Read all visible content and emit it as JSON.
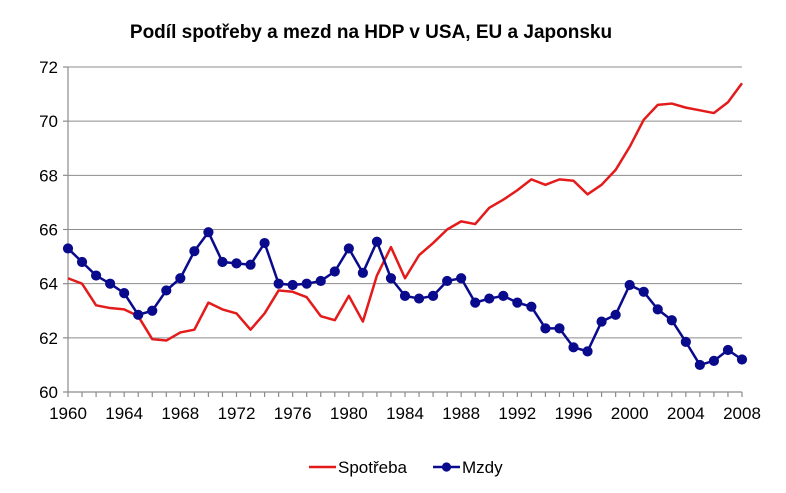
{
  "chart_data": {
    "type": "line",
    "title": "Podíl spotřeby a mezd na HDP v USA, EU a Japonsku",
    "xlabel": "",
    "ylabel": "",
    "ylim": [
      60,
      72
    ],
    "yticks": [
      "60",
      "62",
      "64",
      "66",
      "68",
      "70",
      "72"
    ],
    "xtick_labels": [
      "1960",
      "1964",
      "1968",
      "1972",
      "1976",
      "1980",
      "1984",
      "1988",
      "1992",
      "1996",
      "2000",
      "2004",
      "2008"
    ],
    "grid": true,
    "legend_position": "bottom",
    "x": [
      1960,
      1961,
      1962,
      1963,
      1964,
      1965,
      1966,
      1967,
      1968,
      1969,
      1970,
      1971,
      1972,
      1973,
      1974,
      1975,
      1976,
      1977,
      1978,
      1979,
      1980,
      1981,
      1982,
      1983,
      1984,
      1985,
      1986,
      1987,
      1988,
      1989,
      1990,
      1991,
      1992,
      1993,
      1994,
      1995,
      1996,
      1997,
      1998,
      1999,
      2000,
      2001,
      2002,
      2003,
      2004,
      2005,
      2006,
      2007,
      2008
    ],
    "series": [
      {
        "name": "Spotřeba",
        "color": "#e31b1b",
        "marker": "none",
        "values": [
          64.2,
          64.0,
          63.2,
          63.1,
          63.05,
          62.8,
          61.95,
          61.9,
          62.2,
          62.3,
          63.3,
          63.05,
          62.9,
          62.3,
          62.9,
          63.75,
          63.7,
          63.5,
          62.8,
          62.65,
          63.55,
          62.6,
          64.3,
          65.35,
          64.2,
          65.05,
          65.5,
          66.0,
          66.3,
          66.2,
          66.8,
          67.1,
          67.45,
          67.85,
          67.65,
          67.85,
          67.8,
          67.3,
          67.65,
          68.2,
          69.05,
          70.05,
          70.6,
          70.65,
          70.5,
          70.4,
          70.3,
          70.7,
          71.4
        ]
      },
      {
        "name": "Mzdy",
        "color": "#0a0a8c",
        "marker": "circle",
        "values": [
          65.3,
          64.8,
          64.3,
          64.0,
          63.65,
          62.85,
          63.0,
          63.75,
          64.2,
          65.2,
          65.9,
          64.8,
          64.75,
          64.7,
          65.5,
          64.0,
          63.95,
          64.0,
          64.1,
          64.45,
          65.3,
          64.4,
          65.55,
          64.2,
          63.55,
          63.45,
          63.55,
          64.1,
          64.2,
          63.3,
          63.45,
          63.55,
          63.3,
          63.15,
          62.35,
          62.35,
          61.65,
          61.5,
          62.6,
          62.85,
          63.95,
          63.7,
          63.05,
          62.65,
          61.85,
          61.0,
          61.15,
          61.55,
          61.2
        ]
      }
    ]
  }
}
